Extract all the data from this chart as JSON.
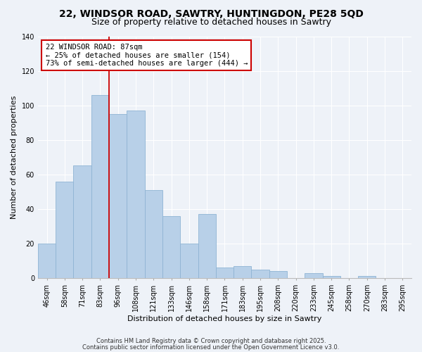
{
  "title": "22, WINDSOR ROAD, SAWTRY, HUNTINGDON, PE28 5QD",
  "subtitle": "Size of property relative to detached houses in Sawtry",
  "xlabel": "Distribution of detached houses by size in Sawtry",
  "ylabel": "Number of detached properties",
  "categories": [
    "46sqm",
    "58sqm",
    "71sqm",
    "83sqm",
    "96sqm",
    "108sqm",
    "121sqm",
    "133sqm",
    "146sqm",
    "158sqm",
    "171sqm",
    "183sqm",
    "195sqm",
    "208sqm",
    "220sqm",
    "233sqm",
    "245sqm",
    "258sqm",
    "270sqm",
    "283sqm",
    "295sqm"
  ],
  "values": [
    20,
    56,
    65,
    106,
    95,
    97,
    51,
    36,
    20,
    37,
    6,
    7,
    5,
    4,
    0,
    3,
    1,
    0,
    1,
    0,
    0
  ],
  "bar_color": "#b8d0e8",
  "bar_edgecolor": "#8fb4d4",
  "vline_color": "#cc0000",
  "vline_x_index": 3.5,
  "annotation_text_line1": "22 WINDSOR ROAD: 87sqm",
  "annotation_text_line2": "← 25% of detached houses are smaller (154)",
  "annotation_text_line3": "73% of semi-detached houses are larger (444) →",
  "ylim": [
    0,
    140
  ],
  "yticks": [
    0,
    20,
    40,
    60,
    80,
    100,
    120,
    140
  ],
  "title_fontsize": 10,
  "subtitle_fontsize": 9,
  "axis_label_fontsize": 8,
  "tick_fontsize": 7,
  "footnote1": "Contains HM Land Registry data © Crown copyright and database right 2025.",
  "footnote2": "Contains public sector information licensed under the Open Government Licence v3.0.",
  "background_color": "#eef2f8",
  "grid_color": "#ffffff",
  "ann_box_edgecolor": "#cc0000",
  "ann_box_facecolor": "#ffffff"
}
